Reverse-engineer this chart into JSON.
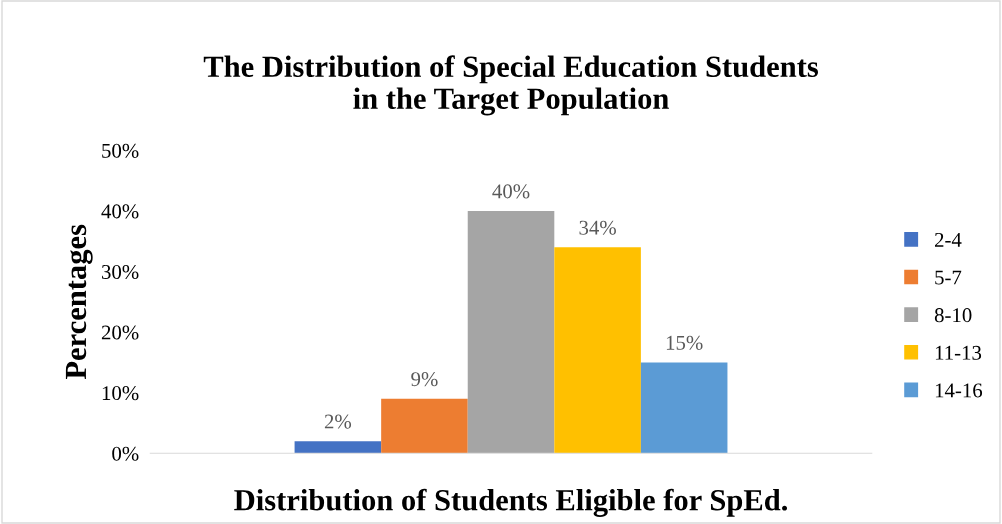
{
  "chart_data": {
    "type": "bar",
    "title": "The Distribution of Special Education Students\nin the Target Population",
    "xlabel": "Distribution of Students Eligible for SpEd.",
    "ylabel": "Percentages",
    "categories": [
      null
    ],
    "series": [
      {
        "name": "2-4",
        "color": "#4472c4",
        "values": [
          2
        ],
        "value_labels": [
          "2%"
        ]
      },
      {
        "name": "5-7",
        "color": "#ed7d31",
        "values": [
          9
        ],
        "value_labels": [
          "9%"
        ]
      },
      {
        "name": "8-10",
        "color": "#a5a5a5",
        "values": [
          40
        ],
        "value_labels": [
          "40%"
        ]
      },
      {
        "name": "11-13",
        "color": "#ffc000",
        "values": [
          34
        ],
        "value_labels": [
          "34%"
        ]
      },
      {
        "name": "14-16",
        "color": "#5b9bd5",
        "values": [
          15
        ],
        "value_labels": [
          "15%"
        ]
      }
    ],
    "ylim": [
      0,
      50
    ],
    "yticks": [
      {
        "value": 0,
        "label": "0%"
      },
      {
        "value": 10,
        "label": "10%"
      },
      {
        "value": 20,
        "label": "20%"
      },
      {
        "value": 30,
        "label": "30%"
      },
      {
        "value": 40,
        "label": "40%"
      },
      {
        "value": 50,
        "label": "50%"
      }
    ],
    "grid": false,
    "legend": "right"
  }
}
